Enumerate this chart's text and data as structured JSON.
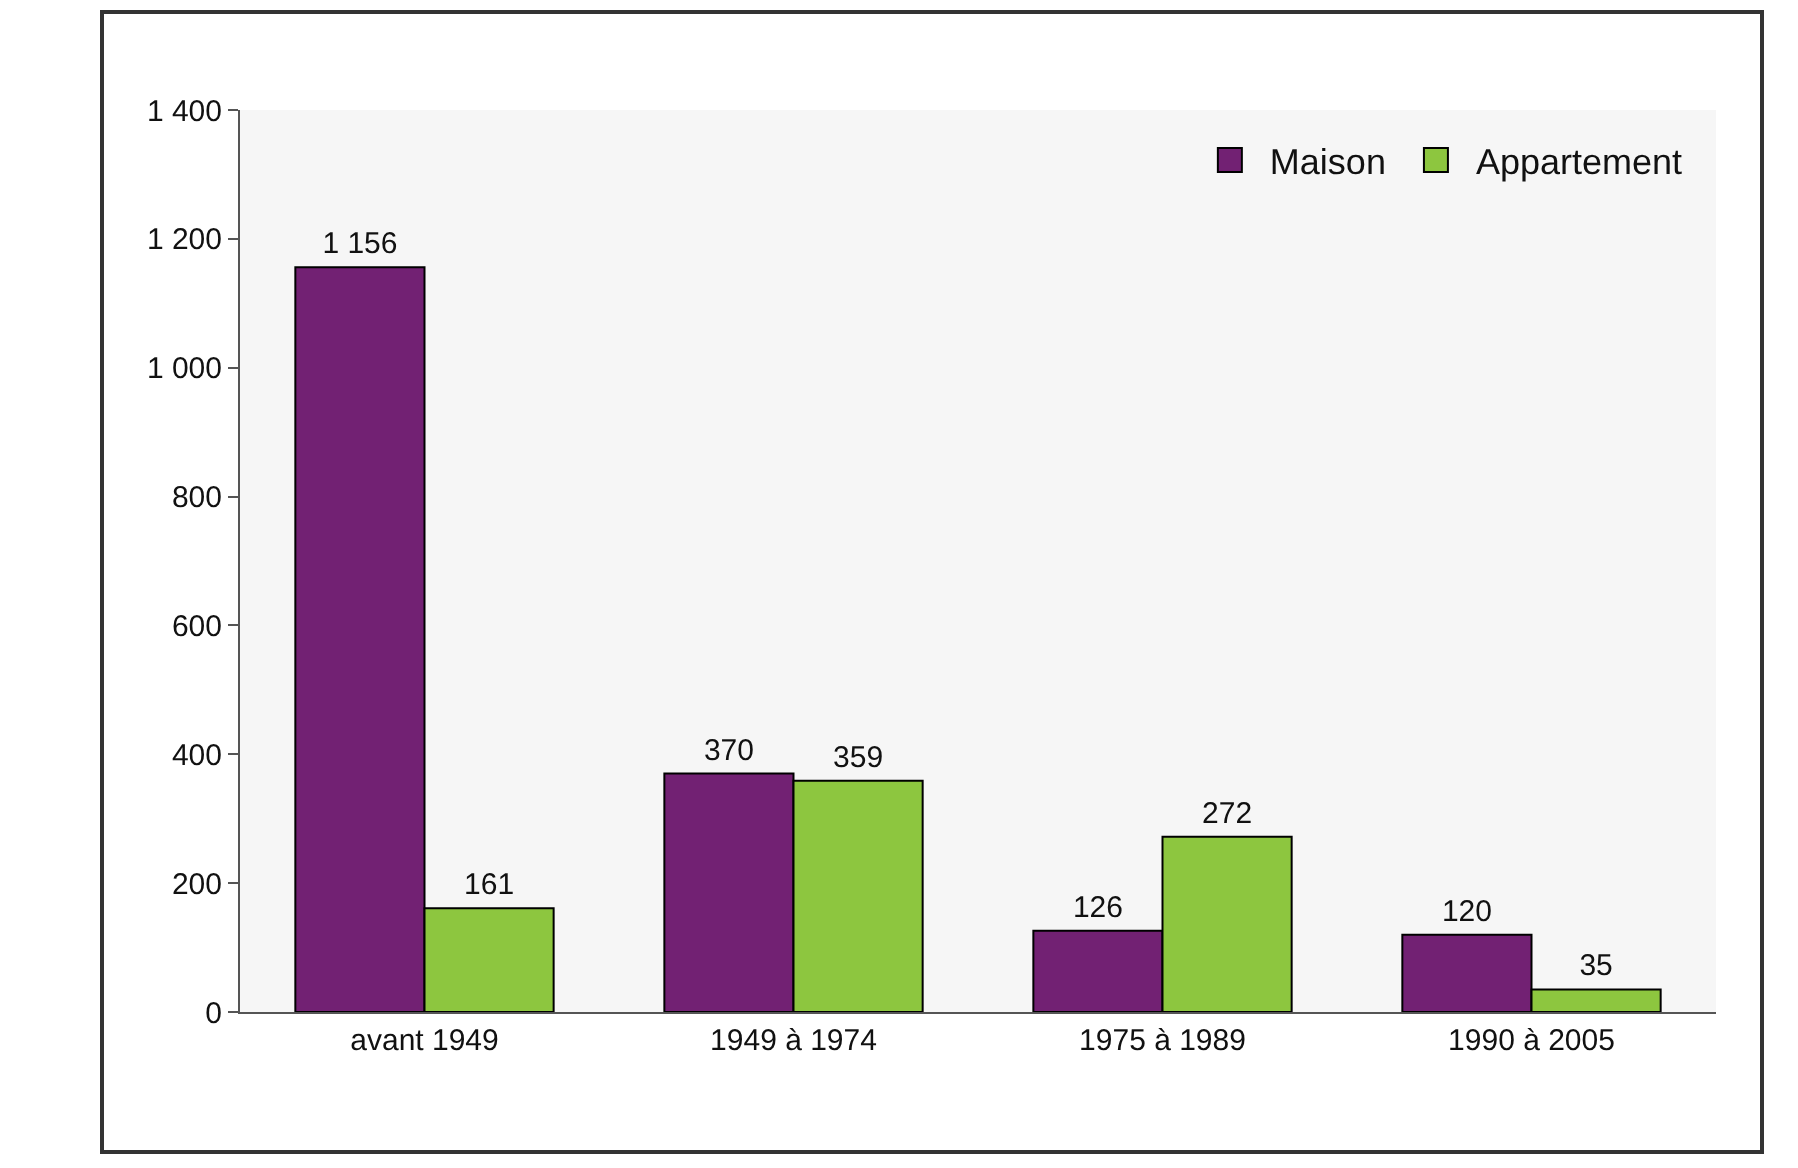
{
  "chart_data": {
    "type": "bar",
    "categories": [
      "avant 1949",
      "1949 à 1974",
      "1975 à 1989",
      "1990 à 2005"
    ],
    "series": [
      {
        "name": "Maison",
        "color": "#722173",
        "values": [
          1156,
          370,
          126,
          120
        ],
        "value_labels": [
          "1 156",
          "370",
          "126",
          "120"
        ]
      },
      {
        "name": "Appartement",
        "color": "#8dc63f",
        "values": [
          161,
          359,
          272,
          35
        ],
        "value_labels": [
          "161",
          "359",
          "272",
          "35"
        ]
      }
    ],
    "ylim": [
      0,
      1400
    ],
    "yticks": [
      0,
      200,
      400,
      600,
      800,
      {
        "value": 1000,
        "label": "1 000"
      },
      {
        "value": 1200,
        "label": "1 200"
      },
      {
        "value": 1400,
        "label": "1 400"
      }
    ],
    "grid": false,
    "legend": "top right"
  }
}
